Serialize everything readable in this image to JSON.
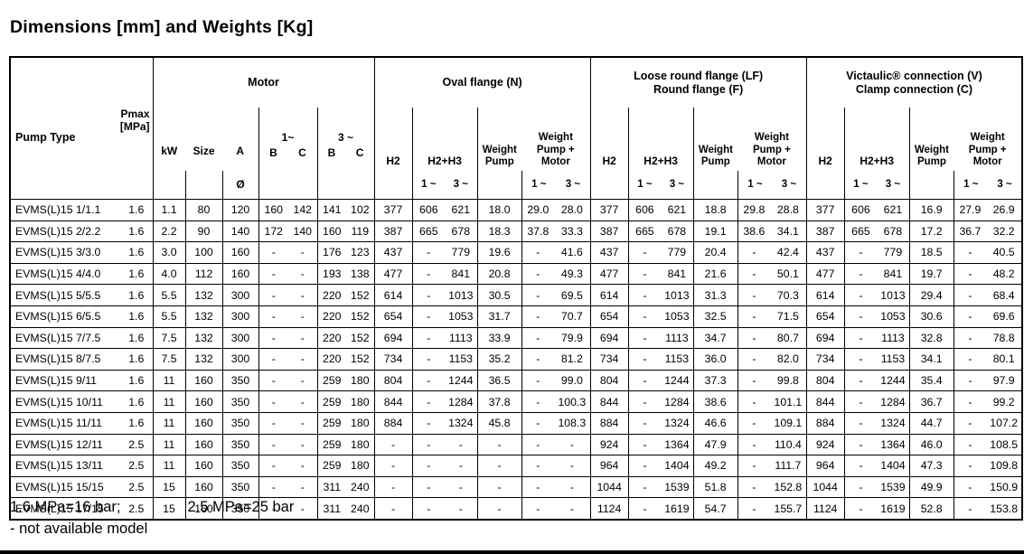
{
  "title": "Dimensions [mm] and Weights [Kg]",
  "table": {
    "header": {
      "pump_type": "Pump Type",
      "pmax": [
        "Pmax",
        "[MPa]"
      ],
      "motor": {
        "title": "Motor",
        "ph1": "1~",
        "ph3": "3 ~",
        "kw": "kW",
        "size": "Size",
        "a": "A",
        "b": "B",
        "c": "C",
        "diameter": "Ø"
      },
      "n_title": "Oval flange (N)",
      "lf_title": [
        "Loose round flange (LF)",
        "Round flange (F)"
      ],
      "v_title": [
        "Victaulic® connection (V)",
        "Clamp connection (C)"
      ],
      "flange": {
        "h2": "H2",
        "h2h3": "H2+H3",
        "weight_pump": [
          "Weight",
          "Pump"
        ],
        "weight_pump_motor": [
          "Weight",
          "Pump +",
          "Motor"
        ],
        "ph1": "1 ~",
        "ph3": "3 ~"
      }
    },
    "rows": [
      [
        "EVMS(L)15 1/1.1",
        "1.6",
        "1.1",
        "80",
        "120",
        "160",
        "142",
        "141",
        "102",
        "377",
        "606",
        "621",
        "18.0",
        "29.0",
        "28.0",
        "377",
        "606",
        "621",
        "18.8",
        "29.8",
        "28.8",
        "377",
        "606",
        "621",
        "16.9",
        "27.9",
        "26.9"
      ],
      [
        "EVMS(L)15 2/2.2",
        "1.6",
        "2.2",
        "90",
        "140",
        "172",
        "140",
        "160",
        "119",
        "387",
        "665",
        "678",
        "18.3",
        "37.8",
        "33.3",
        "387",
        "665",
        "678",
        "19.1",
        "38.6",
        "34.1",
        "387",
        "665",
        "678",
        "17.2",
        "36.7",
        "32.2"
      ],
      [
        "EVMS(L)15 3/3.0",
        "1.6",
        "3.0",
        "100",
        "160",
        "-",
        "-",
        "176",
        "123",
        "437",
        "-",
        "779",
        "19.6",
        "-",
        "41.6",
        "437",
        "-",
        "779",
        "20.4",
        "-",
        "42.4",
        "437",
        "-",
        "779",
        "18.5",
        "-",
        "40.5"
      ],
      [
        "EVMS(L)15 4/4.0",
        "1.6",
        "4.0",
        "112",
        "160",
        "-",
        "-",
        "193",
        "138",
        "477",
        "-",
        "841",
        "20.8",
        "-",
        "49.3",
        "477",
        "-",
        "841",
        "21.6",
        "-",
        "50.1",
        "477",
        "-",
        "841",
        "19.7",
        "-",
        "48.2"
      ],
      [
        "EVMS(L)15 5/5.5",
        "1.6",
        "5.5",
        "132",
        "300",
        "-",
        "-",
        "220",
        "152",
        "614",
        "-",
        "1013",
        "30.5",
        "-",
        "69.5",
        "614",
        "-",
        "1013",
        "31.3",
        "-",
        "70.3",
        "614",
        "-",
        "1013",
        "29.4",
        "-",
        "68.4"
      ],
      [
        "EVMS(L)15 6/5.5",
        "1.6",
        "5.5",
        "132",
        "300",
        "-",
        "-",
        "220",
        "152",
        "654",
        "-",
        "1053",
        "31.7",
        "-",
        "70.7",
        "654",
        "-",
        "1053",
        "32.5",
        "-",
        "71.5",
        "654",
        "-",
        "1053",
        "30.6",
        "-",
        "69.6"
      ],
      [
        "EVMS(L)15 7/7.5",
        "1.6",
        "7.5",
        "132",
        "300",
        "-",
        "-",
        "220",
        "152",
        "694",
        "-",
        "1113",
        "33.9",
        "-",
        "79.9",
        "694",
        "-",
        "1113",
        "34.7",
        "-",
        "80.7",
        "694",
        "-",
        "1113",
        "32.8",
        "-",
        "78.8"
      ],
      [
        "EVMS(L)15 8/7.5",
        "1.6",
        "7.5",
        "132",
        "300",
        "-",
        "-",
        "220",
        "152",
        "734",
        "-",
        "1153",
        "35.2",
        "-",
        "81.2",
        "734",
        "-",
        "1153",
        "36.0",
        "-",
        "82.0",
        "734",
        "-",
        "1153",
        "34.1",
        "-",
        "80.1"
      ],
      [
        "EVMS(L)15 9/11",
        "1.6",
        "11",
        "160",
        "350",
        "-",
        "-",
        "259",
        "180",
        "804",
        "-",
        "1244",
        "36.5",
        "-",
        "99.0",
        "804",
        "-",
        "1244",
        "37.3",
        "-",
        "99.8",
        "804",
        "-",
        "1244",
        "35.4",
        "-",
        "97.9"
      ],
      [
        "EVMS(L)15 10/11",
        "1.6",
        "11",
        "160",
        "350",
        "-",
        "-",
        "259",
        "180",
        "844",
        "-",
        "1284",
        "37.8",
        "-",
        "100.3",
        "844",
        "-",
        "1284",
        "38.6",
        "-",
        "101.1",
        "844",
        "-",
        "1284",
        "36.7",
        "-",
        "99.2"
      ],
      [
        "EVMS(L)15 11/11",
        "1.6",
        "11",
        "160",
        "350",
        "-",
        "-",
        "259",
        "180",
        "884",
        "-",
        "1324",
        "45.8",
        "-",
        "108.3",
        "884",
        "-",
        "1324",
        "46.6",
        "-",
        "109.1",
        "884",
        "-",
        "1324",
        "44.7",
        "-",
        "107.2"
      ],
      [
        "EVMS(L)15 12/11",
        "2.5",
        "11",
        "160",
        "350",
        "-",
        "-",
        "259",
        "180",
        "-",
        "-",
        "-",
        "-",
        "-",
        "-",
        "924",
        "-",
        "1364",
        "47.9",
        "-",
        "110.4",
        "924",
        "-",
        "1364",
        "46.0",
        "-",
        "108.5"
      ],
      [
        "EVMS(L)15 13/11",
        "2.5",
        "11",
        "160",
        "350",
        "-",
        "-",
        "259",
        "180",
        "-",
        "-",
        "-",
        "-",
        "-",
        "-",
        "964",
        "-",
        "1404",
        "49.2",
        "-",
        "111.7",
        "964",
        "-",
        "1404",
        "47.3",
        "-",
        "109.8"
      ],
      [
        "EVMS(L)15 15/15",
        "2.5",
        "15",
        "160",
        "350",
        "-",
        "-",
        "311",
        "240",
        "-",
        "-",
        "-",
        "-",
        "-",
        "-",
        "1044",
        "-",
        "1539",
        "51.8",
        "-",
        "152.8",
        "1044",
        "-",
        "1539",
        "49.9",
        "-",
        "150.9"
      ],
      [
        "EVMS(L)15 17/15",
        "2.5",
        "15",
        "160",
        "350",
        "-",
        "-",
        "311",
        "240",
        "-",
        "-",
        "-",
        "-",
        "-",
        "-",
        "1124",
        "-",
        "1619",
        "54.7",
        "-",
        "155.7",
        "1124",
        "-",
        "1619",
        "52.8",
        "-",
        "153.8"
      ]
    ]
  },
  "footer": {
    "note1": "1.6 MPa=16 bar;",
    "note2": "2.5 MPa=25 bar",
    "note3": "- not available model"
  }
}
